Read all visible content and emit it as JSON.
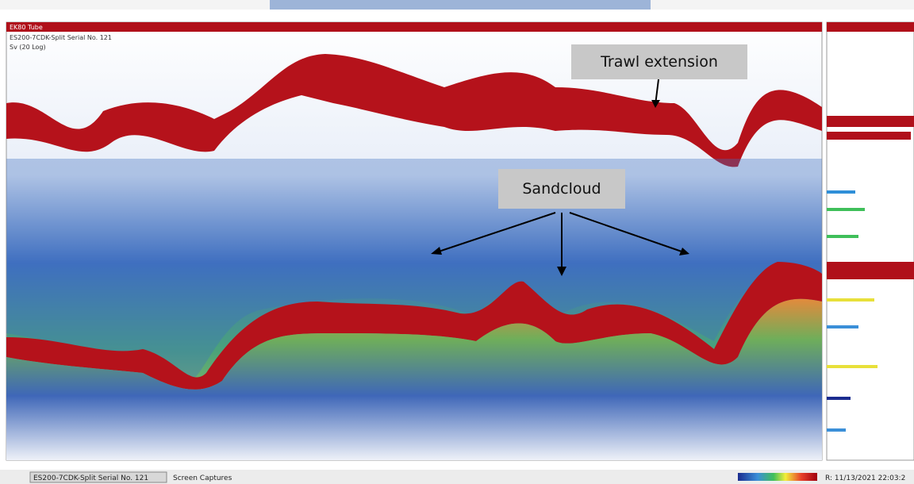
{
  "echogram": {
    "channel_label": "EK80 Tube",
    "transducer": "ES200-7CDK-Split Serial No. 121",
    "variable": "Sv (20 Log)",
    "annotations": [
      {
        "label": "Trawl extension"
      },
      {
        "label": "Sandcloud"
      }
    ]
  },
  "status_bar": {
    "tab": "ES200-7CDK-Split Serial No. 121",
    "item": "Screen Captures",
    "timestamp": "R: 11/13/2021   22:03:2"
  }
}
